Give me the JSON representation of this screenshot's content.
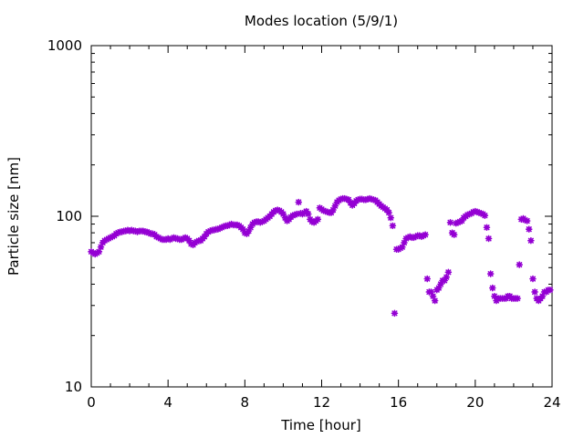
{
  "chart_data": {
    "type": "scatter",
    "title": "Modes location (5/9/1)",
    "xlabel": "Time [hour]",
    "ylabel": "Particle size [nm]",
    "xlim": [
      0,
      24
    ],
    "ylim": [
      10,
      1000
    ],
    "yscale": "log",
    "grid": false,
    "legend": "none",
    "marker_color": "#9400d3",
    "x_ticks": [
      0,
      4,
      8,
      12,
      16,
      20,
      24
    ],
    "y_ticks": [
      10,
      100,
      1000
    ],
    "x_tick_labels": [
      "0",
      "4",
      "8",
      "12",
      "16",
      "20",
      "24"
    ],
    "y_tick_labels": [
      "10",
      "100",
      "1000"
    ],
    "series": [
      {
        "points": [
          [
            0.0,
            62
          ],
          [
            0.1,
            61
          ],
          [
            0.2,
            60
          ],
          [
            0.3,
            61
          ],
          [
            0.4,
            62
          ],
          [
            0.5,
            66
          ],
          [
            0.6,
            70
          ],
          [
            0.7,
            72
          ],
          [
            0.8,
            73
          ],
          [
            0.9,
            74
          ],
          [
            1.0,
            75
          ],
          [
            1.1,
            76
          ],
          [
            1.2,
            77
          ],
          [
            1.3,
            79
          ],
          [
            1.4,
            80
          ],
          [
            1.5,
            81
          ],
          [
            1.6,
            81
          ],
          [
            1.7,
            82
          ],
          [
            1.8,
            82
          ],
          [
            1.9,
            83
          ],
          [
            2.0,
            82
          ],
          [
            2.1,
            83
          ],
          [
            2.2,
            82
          ],
          [
            2.3,
            82
          ],
          [
            2.4,
            81
          ],
          [
            2.5,
            82
          ],
          [
            2.6,
            82
          ],
          [
            2.7,
            82
          ],
          [
            2.8,
            81
          ],
          [
            2.9,
            81
          ],
          [
            3.0,
            80
          ],
          [
            3.1,
            79
          ],
          [
            3.2,
            79
          ],
          [
            3.3,
            78
          ],
          [
            3.4,
            76
          ],
          [
            3.5,
            75
          ],
          [
            3.6,
            74
          ],
          [
            3.7,
            73
          ],
          [
            3.8,
            73
          ],
          [
            3.9,
            73
          ],
          [
            4.0,
            74
          ],
          [
            4.1,
            73
          ],
          [
            4.2,
            74
          ],
          [
            4.3,
            75
          ],
          [
            4.4,
            74
          ],
          [
            4.5,
            74
          ],
          [
            4.6,
            73
          ],
          [
            4.7,
            73
          ],
          [
            4.8,
            74
          ],
          [
            4.9,
            75
          ],
          [
            5.0,
            74
          ],
          [
            5.1,
            72
          ],
          [
            5.2,
            69
          ],
          [
            5.3,
            68
          ],
          [
            5.4,
            70
          ],
          [
            5.5,
            71
          ],
          [
            5.6,
            72
          ],
          [
            5.7,
            72
          ],
          [
            5.8,
            74
          ],
          [
            5.9,
            76
          ],
          [
            6.0,
            79
          ],
          [
            6.1,
            81
          ],
          [
            6.2,
            82
          ],
          [
            6.3,
            83
          ],
          [
            6.4,
            83
          ],
          [
            6.5,
            84
          ],
          [
            6.6,
            84
          ],
          [
            6.7,
            85
          ],
          [
            6.8,
            86
          ],
          [
            6.9,
            87
          ],
          [
            7.0,
            88
          ],
          [
            7.1,
            88
          ],
          [
            7.2,
            89
          ],
          [
            7.3,
            90
          ],
          [
            7.4,
            89
          ],
          [
            7.5,
            89
          ],
          [
            7.6,
            89
          ],
          [
            7.7,
            88
          ],
          [
            7.8,
            86
          ],
          [
            7.9,
            84
          ],
          [
            8.0,
            80
          ],
          [
            8.1,
            79
          ],
          [
            8.2,
            82
          ],
          [
            8.3,
            86
          ],
          [
            8.4,
            90
          ],
          [
            8.5,
            92
          ],
          [
            8.6,
            93
          ],
          [
            8.7,
            93
          ],
          [
            8.8,
            92
          ],
          [
            8.9,
            93
          ],
          [
            9.0,
            94
          ],
          [
            9.1,
            96
          ],
          [
            9.2,
            98
          ],
          [
            9.3,
            100
          ],
          [
            9.4,
            103
          ],
          [
            9.5,
            106
          ],
          [
            9.6,
            108
          ],
          [
            9.7,
            109
          ],
          [
            9.8,
            108
          ],
          [
            9.9,
            106
          ],
          [
            10.0,
            103
          ],
          [
            10.1,
            98
          ],
          [
            10.2,
            94
          ],
          [
            10.3,
            96
          ],
          [
            10.4,
            99
          ],
          [
            10.5,
            101
          ],
          [
            10.6,
            102
          ],
          [
            10.7,
            103
          ],
          [
            10.8,
            121
          ],
          [
            10.9,
            104
          ],
          [
            11.0,
            103
          ],
          [
            11.1,
            105
          ],
          [
            11.2,
            107
          ],
          [
            11.3,
            103
          ],
          [
            11.4,
            96
          ],
          [
            11.5,
            93
          ],
          [
            11.6,
            92
          ],
          [
            11.7,
            94
          ],
          [
            11.8,
            96
          ],
          [
            11.9,
            112
          ],
          [
            12.0,
            110
          ],
          [
            12.1,
            108
          ],
          [
            12.2,
            107
          ],
          [
            12.3,
            106
          ],
          [
            12.4,
            105
          ],
          [
            12.5,
            105
          ],
          [
            12.6,
            109
          ],
          [
            12.7,
            115
          ],
          [
            12.8,
            121
          ],
          [
            12.9,
            124
          ],
          [
            13.0,
            126
          ],
          [
            13.1,
            127
          ],
          [
            13.2,
            127
          ],
          [
            13.3,
            126
          ],
          [
            13.4,
            125
          ],
          [
            13.5,
            120
          ],
          [
            13.6,
            116
          ],
          [
            13.7,
            119
          ],
          [
            13.8,
            123
          ],
          [
            13.9,
            125
          ],
          [
            14.0,
            126
          ],
          [
            14.1,
            126
          ],
          [
            14.2,
            125
          ],
          [
            14.3,
            125
          ],
          [
            14.4,
            126
          ],
          [
            14.5,
            127
          ],
          [
            14.6,
            126
          ],
          [
            14.7,
            125
          ],
          [
            14.8,
            124
          ],
          [
            14.9,
            121
          ],
          [
            15.0,
            118
          ],
          [
            15.1,
            115
          ],
          [
            15.2,
            113
          ],
          [
            15.3,
            111
          ],
          [
            15.4,
            109
          ],
          [
            15.5,
            105
          ],
          [
            15.6,
            98
          ],
          [
            15.7,
            88
          ],
          [
            15.8,
            27
          ],
          [
            15.9,
            64
          ],
          [
            16.0,
            64
          ],
          [
            16.1,
            65
          ],
          [
            16.2,
            66
          ],
          [
            16.3,
            70
          ],
          [
            16.4,
            74
          ],
          [
            16.5,
            75
          ],
          [
            16.6,
            76
          ],
          [
            16.7,
            75
          ],
          [
            16.8,
            75
          ],
          [
            16.9,
            76
          ],
          [
            17.0,
            77
          ],
          [
            17.1,
            77
          ],
          [
            17.2,
            76
          ],
          [
            17.3,
            77
          ],
          [
            17.4,
            78
          ],
          [
            17.5,
            43
          ],
          [
            17.6,
            36
          ],
          [
            17.7,
            36
          ],
          [
            17.8,
            34
          ],
          [
            17.9,
            32
          ],
          [
            18.0,
            37
          ],
          [
            18.1,
            38
          ],
          [
            18.2,
            40
          ],
          [
            18.3,
            42
          ],
          [
            18.4,
            42
          ],
          [
            18.5,
            44
          ],
          [
            18.6,
            47
          ],
          [
            18.7,
            92
          ],
          [
            18.8,
            80
          ],
          [
            18.9,
            78
          ],
          [
            19.0,
            91
          ],
          [
            19.1,
            92
          ],
          [
            19.2,
            93
          ],
          [
            19.3,
            94
          ],
          [
            19.4,
            98
          ],
          [
            19.5,
            100
          ],
          [
            19.6,
            102
          ],
          [
            19.7,
            103
          ],
          [
            19.8,
            104
          ],
          [
            19.9,
            106
          ],
          [
            20.0,
            107
          ],
          [
            20.1,
            106
          ],
          [
            20.2,
            105
          ],
          [
            20.3,
            104
          ],
          [
            20.4,
            103
          ],
          [
            20.5,
            101
          ],
          [
            20.6,
            86
          ],
          [
            20.7,
            74
          ],
          [
            20.8,
            46
          ],
          [
            20.9,
            38
          ],
          [
            21.0,
            34
          ],
          [
            21.1,
            32
          ],
          [
            21.2,
            33
          ],
          [
            21.3,
            33
          ],
          [
            21.4,
            33
          ],
          [
            21.5,
            33
          ],
          [
            21.6,
            33
          ],
          [
            21.7,
            34
          ],
          [
            21.8,
            34
          ],
          [
            21.9,
            33
          ],
          [
            22.0,
            33
          ],
          [
            22.1,
            33
          ],
          [
            22.2,
            33
          ],
          [
            22.3,
            52
          ],
          [
            22.4,
            96
          ],
          [
            22.5,
            97
          ],
          [
            22.6,
            95
          ],
          [
            22.7,
            94
          ],
          [
            22.8,
            84
          ],
          [
            22.9,
            72
          ],
          [
            23.0,
            43
          ],
          [
            23.1,
            36
          ],
          [
            23.2,
            33
          ],
          [
            23.3,
            32
          ],
          [
            23.4,
            33
          ],
          [
            23.5,
            34
          ],
          [
            23.6,
            36
          ],
          [
            23.7,
            36
          ],
          [
            23.8,
            37
          ],
          [
            23.9,
            37
          ]
        ]
      }
    ]
  }
}
